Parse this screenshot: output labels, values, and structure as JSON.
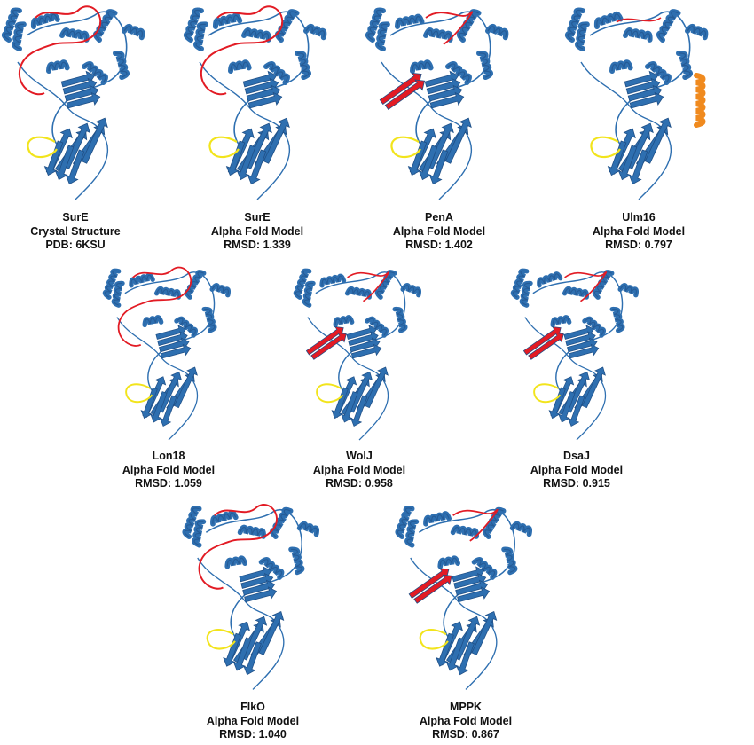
{
  "colors": {
    "protein": "#2e6fb0",
    "protein_dark": "#1f4f86",
    "loop_red": "#e21b24",
    "loop_yellow": "#f2e41c",
    "helix_orange": "#f08a1e",
    "text": "#111111"
  },
  "panels": [
    {
      "name": "SurE",
      "line2": "Crystal Structure",
      "line3": "PDB: 6KSU",
      "accent": "red-loop"
    },
    {
      "name": "SurE",
      "line2": "Alpha Fold Model",
      "line3": "RMSD: 1.339",
      "accent": "red-loop"
    },
    {
      "name": "PenA",
      "line2": "Alpha Fold Model",
      "line3": "RMSD: 1.402",
      "accent": "red-strand"
    },
    {
      "name": "Ulm16",
      "line2": "Alpha Fold Model",
      "line3": "RMSD: 0.797",
      "accent": "orange-helix"
    },
    {
      "name": "Lon18",
      "line2": "Alpha Fold Model",
      "line3": "RMSD: 1.059",
      "accent": "red-loop"
    },
    {
      "name": "WolJ",
      "line2": "Alpha Fold Model",
      "line3": "RMSD: 0.958",
      "accent": "red-strand"
    },
    {
      "name": "DsaJ",
      "line2": "Alpha Fold Model",
      "line3": "RMSD: 0.915",
      "accent": "red-strand"
    },
    {
      "name": "FlkO",
      "line2": "Alpha Fold Model",
      "line3": "RMSD: 1.040",
      "accent": "red-loop"
    },
    {
      "name": "MPPK",
      "line2": "Alpha Fold Model",
      "line3": "RMSD: 0.867",
      "accent": "red-strand"
    }
  ]
}
